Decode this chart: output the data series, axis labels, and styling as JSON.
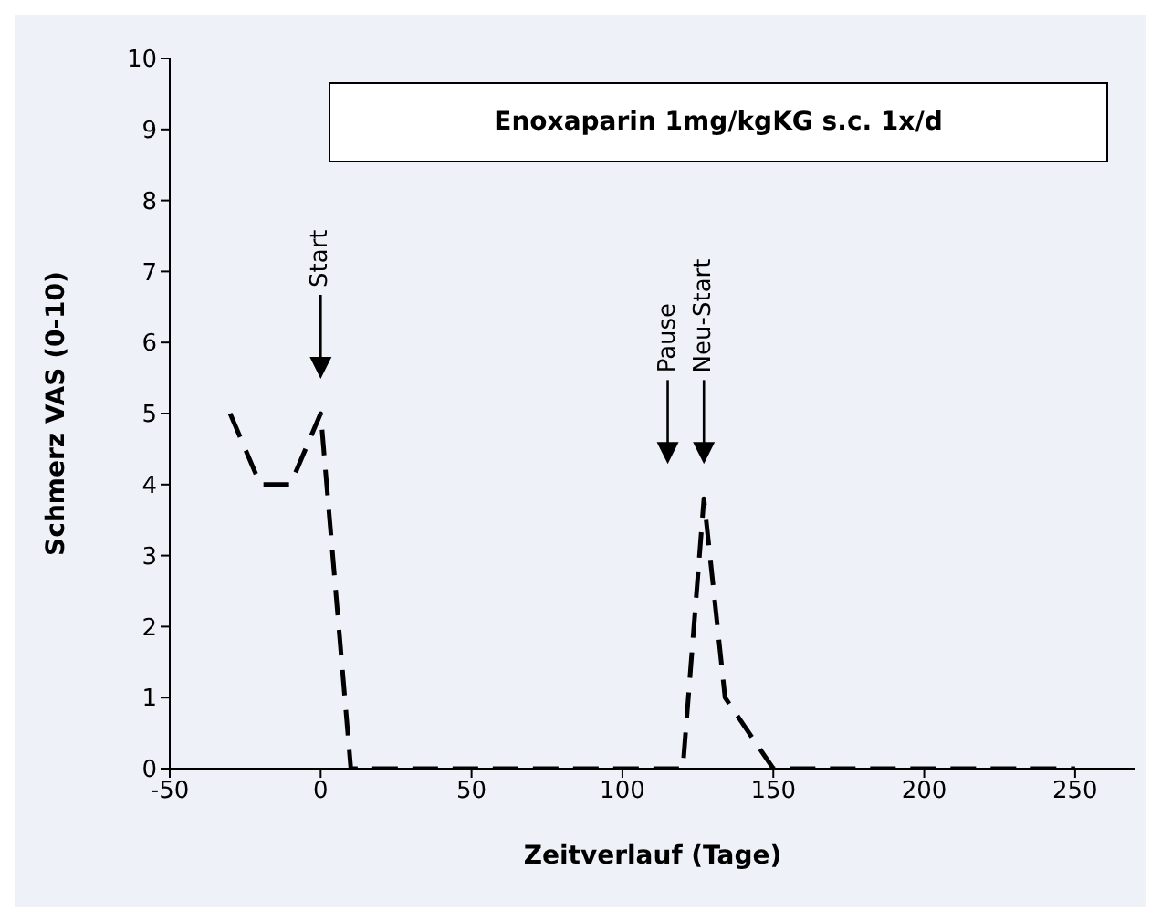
{
  "chart_data": {
    "type": "line",
    "title": "Enoxaparin 1mg/kgKG s.c. 1x/d",
    "xlabel": "Zeitverlauf (Tage)",
    "ylabel": "Schmerz VAS (0-10)",
    "series": [
      {
        "color": "#000000",
        "x": [
          -30,
          -20,
          -10,
          0,
          10,
          115,
          120,
          127,
          134,
          150,
          250
        ],
        "values": [
          5,
          4,
          4,
          5,
          0,
          0,
          0,
          3.8,
          1,
          0,
          0
        ]
      }
    ],
    "xlim": [
      -50,
      270
    ],
    "xticks": [
      -50,
      0,
      50,
      100,
      150,
      200,
      250
    ],
    "ylim": [
      0,
      10
    ],
    "yticks": [
      0,
      1,
      2,
      3,
      4,
      5,
      6,
      7,
      8,
      9,
      10
    ],
    "grid": false,
    "legend": false,
    "marker": "none",
    "line_style": "dashed",
    "annotations": [
      {
        "text": "Start",
        "x": 0
      },
      {
        "text": "Pause",
        "x": 115
      },
      {
        "text": "Neu-Start",
        "x": 127
      }
    ]
  }
}
